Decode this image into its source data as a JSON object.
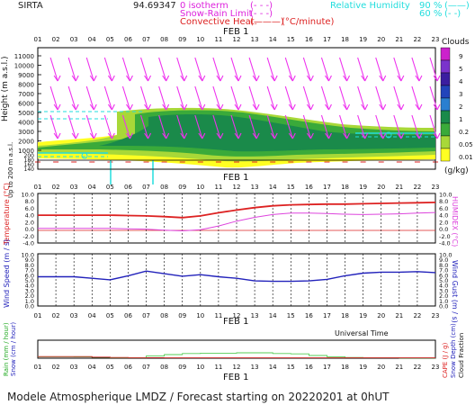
{
  "header": {
    "site": "SIRTA",
    "code": "94.69347",
    "legend_isotherm": "0 isotherm",
    "legend_snow": "Snow-Rain Limit",
    "legend_conv": "Convective Heat.",
    "legend_conv_unit": "(°C/minute)",
    "legend_rh": "Relative Humidity",
    "rh_90": "90 %",
    "rh_60": "60 %"
  },
  "axes": {
    "hours": [
      "01",
      "02",
      "03",
      "04",
      "05",
      "06",
      "07",
      "08",
      "09",
      "10",
      "11",
      "12",
      "13",
      "14",
      "15",
      "16",
      "17",
      "18",
      "19",
      "20",
      "21",
      "22",
      "23"
    ],
    "date_label": "FEB  1",
    "height_label": "Height  (m a.s.l.)",
    "up_to_200_label": "Up to 200 m a.s.l.",
    "height_ticks": [
      "11000",
      "10000",
      "9000",
      "8000",
      "7000",
      "6000",
      "5000",
      "4000",
      "3000",
      "2000",
      "1000"
    ],
    "low_ticks": [
      "200",
      "180",
      "160",
      "140"
    ],
    "universal_time": "Universal Time"
  },
  "clouds_legend": {
    "title": "Clouds",
    "unit": "(g/kg)",
    "labels": [
      "9",
      "5",
      "4",
      "3",
      "2",
      "1",
      "0.2",
      "0.05",
      "0.01"
    ],
    "colors": [
      "#cc22cc",
      "#7a33cc",
      "#3b1ea0",
      "#2244bb",
      "#2a7fd0",
      "#1a8a4a",
      "#3aaa3a",
      "#a8d838",
      "#ffff22"
    ]
  },
  "panel2": {
    "left_label": "Temperature (°C)",
    "right_label": "HUMIDEX (°C)",
    "ticks": [
      "10.0",
      "8.0",
      "6.0",
      "4.0",
      "2.0",
      "0.0",
      "-2.0",
      "-4.0"
    ]
  },
  "panel3": {
    "left_label": "Wind Speed (m / s)",
    "right_label": "Wind Gust (m / s)",
    "ticks": [
      "10.0",
      "9.0",
      "8.0",
      "7.0",
      "6.0",
      "5.0",
      "4.0",
      "3.0",
      "2.0",
      "1.0",
      "0.0"
    ]
  },
  "panel4": {
    "left_label_a": "Rain (mm / hour)",
    "left_label_b": "Snow (cm / hour)",
    "right_label_a": "CAPE (J / g)",
    "right_label_b": "Snow Depth (cm)",
    "right_label_c": "Cloud Fraction"
  },
  "footer": "Modele Atmospherique LMDZ / Forecast starting on 20220201 at 0hUT",
  "chart_data": [
    {
      "type": "line",
      "panel": "temperature",
      "x": [
        1,
        2,
        3,
        4,
        5,
        6,
        7,
        8,
        9,
        10,
        11,
        12,
        13,
        14,
        15,
        16,
        17,
        18,
        19,
        20,
        21,
        22,
        23
      ],
      "ylim": [
        -4,
        10
      ],
      "series": [
        {
          "values": [
            4.0,
            4.0,
            4.0,
            4.0,
            4.0,
            3.9,
            3.8,
            3.6,
            3.3,
            3.8,
            4.7,
            5.5,
            6.2,
            6.7,
            7.0,
            7.1,
            7.2,
            7.2,
            7.3,
            7.4,
            7.5,
            7.6,
            7.7
          ],
          "color": "#dd2222"
        },
        {
          "values": [
            0.2,
            0.2,
            0.2,
            0.2,
            0.2,
            0.1,
            0.0,
            -0.3,
            -0.5,
            -0.2,
            0.9,
            2.3,
            3.4,
            4.2,
            4.6,
            4.6,
            4.5,
            4.3,
            4.2,
            4.3,
            4.4,
            4.6,
            4.8
          ],
          "color": "#dd44dd"
        }
      ]
    },
    {
      "type": "line",
      "panel": "wind",
      "x": [
        1,
        2,
        3,
        4,
        5,
        6,
        7,
        8,
        9,
        10,
        11,
        12,
        13,
        14,
        15,
        16,
        17,
        18,
        19,
        20,
        21,
        22,
        23
      ],
      "ylim": [
        0,
        10
      ],
      "series": [
        {
          "values": [
            5.7,
            5.7,
            5.7,
            5.4,
            5.1,
            5.9,
            6.8,
            6.3,
            5.8,
            6.1,
            5.7,
            5.4,
            4.9,
            4.8,
            4.8,
            4.9,
            5.2,
            5.9,
            6.4,
            6.6,
            6.6,
            6.7,
            6.5
          ],
          "color": "#2222bb"
        }
      ]
    },
    {
      "type": "area",
      "panel": "rain",
      "x": [
        1,
        2,
        3,
        4,
        5,
        6,
        7,
        8,
        9,
        10,
        11,
        12,
        13,
        14,
        15,
        16,
        17,
        18,
        19,
        20,
        21,
        22,
        23
      ],
      "ylim": [
        0,
        10
      ],
      "series": [
        {
          "values": [
            0.8,
            0.8,
            0.7,
            0.5,
            0.3,
            0.2,
            1.2,
            2.0,
            2.6,
            2.8,
            2.8,
            3.0,
            3.0,
            2.6,
            2.4,
            1.5,
            0.8,
            0.4,
            0.2,
            0.2,
            0.1,
            0.1,
            0.1
          ],
          "color": "#88dd88"
        },
        {
          "values": [
            0.9,
            0.9,
            0.9,
            0.6,
            0.4,
            0.3,
            0.3,
            0.2,
            0.2,
            0.2,
            0.2,
            0.2,
            0.2,
            0.2,
            0.2,
            0.2,
            0.2,
            0.2,
            0.2,
            0.2,
            0.2,
            0.2,
            0.2
          ],
          "color": "#cc2222"
        }
      ]
    }
  ]
}
